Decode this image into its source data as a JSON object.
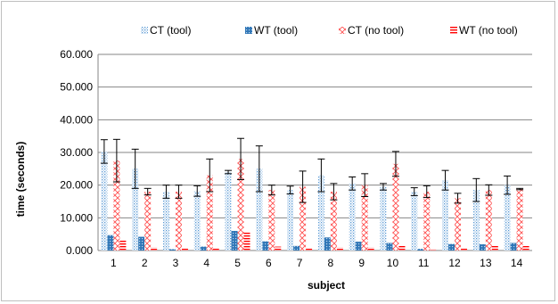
{
  "chart_data": {
    "type": "bar",
    "title": "",
    "xlabel": "subject",
    "ylabel": "time (seconds)",
    "ylim": [
      0,
      60
    ],
    "ytick_step": 10,
    "ytick_labels": [
      "0.000",
      "10.000",
      "20.000",
      "30.000",
      "40.000",
      "50.000",
      "60.000"
    ],
    "grid": true,
    "legend_position": "top",
    "categories": [
      "1",
      "2",
      "3",
      "4",
      "5",
      "6",
      "7",
      "8",
      "9",
      "10",
      "11",
      "12",
      "13",
      "14"
    ],
    "series": [
      {
        "name": "CT (tool)",
        "color": "#5b9bd5",
        "pattern": "light-dots",
        "values": [
          30.3,
          25.0,
          18.0,
          18.2,
          24.0,
          25.0,
          18.5,
          23.0,
          20.5,
          19.5,
          18.0,
          21.5,
          18.5,
          20.0
        ],
        "errors": [
          3.6,
          6.0,
          2.0,
          1.6,
          0.5,
          7.0,
          1.2,
          5.0,
          2.0,
          1.0,
          1.2,
          3.0,
          3.5,
          2.8
        ]
      },
      {
        "name": "WT (tool)",
        "color": "#2e75b6",
        "pattern": "dark-dots",
        "values": [
          4.7,
          4.2,
          0.4,
          1.2,
          6.0,
          2.8,
          1.4,
          4.0,
          2.7,
          2.3,
          0.5,
          2.0,
          1.9,
          2.3
        ],
        "errors": [
          0,
          0,
          0,
          0,
          0,
          0,
          0,
          0,
          0,
          0,
          0,
          0,
          0,
          0
        ]
      },
      {
        "name": "CT (no tool)",
        "color": "#ff5050",
        "pattern": "diagonal-cross",
        "values": [
          27.5,
          18.0,
          18.0,
          23.0,
          28.0,
          18.5,
          19.5,
          18.0,
          20.0,
          26.5,
          18.0,
          16.0,
          18.5,
          18.8
        ],
        "errors": [
          6.5,
          1.0,
          2.0,
          5.0,
          6.3,
          1.5,
          4.8,
          2.5,
          3.5,
          3.8,
          1.8,
          1.5,
          1.6,
          0.2
        ]
      },
      {
        "name": "WT (no tool)",
        "color": "#ff0000",
        "pattern": "horizontal-lines",
        "values": [
          3.0,
          1.0,
          0.6,
          0.8,
          5.5,
          1.2,
          0.8,
          1.0,
          1.0,
          1.5,
          0.3,
          0.9,
          1.4,
          1.6
        ],
        "errors": [
          0,
          0,
          0,
          0,
          0,
          0,
          0,
          0,
          0,
          0,
          0,
          0,
          0,
          0
        ]
      }
    ]
  }
}
